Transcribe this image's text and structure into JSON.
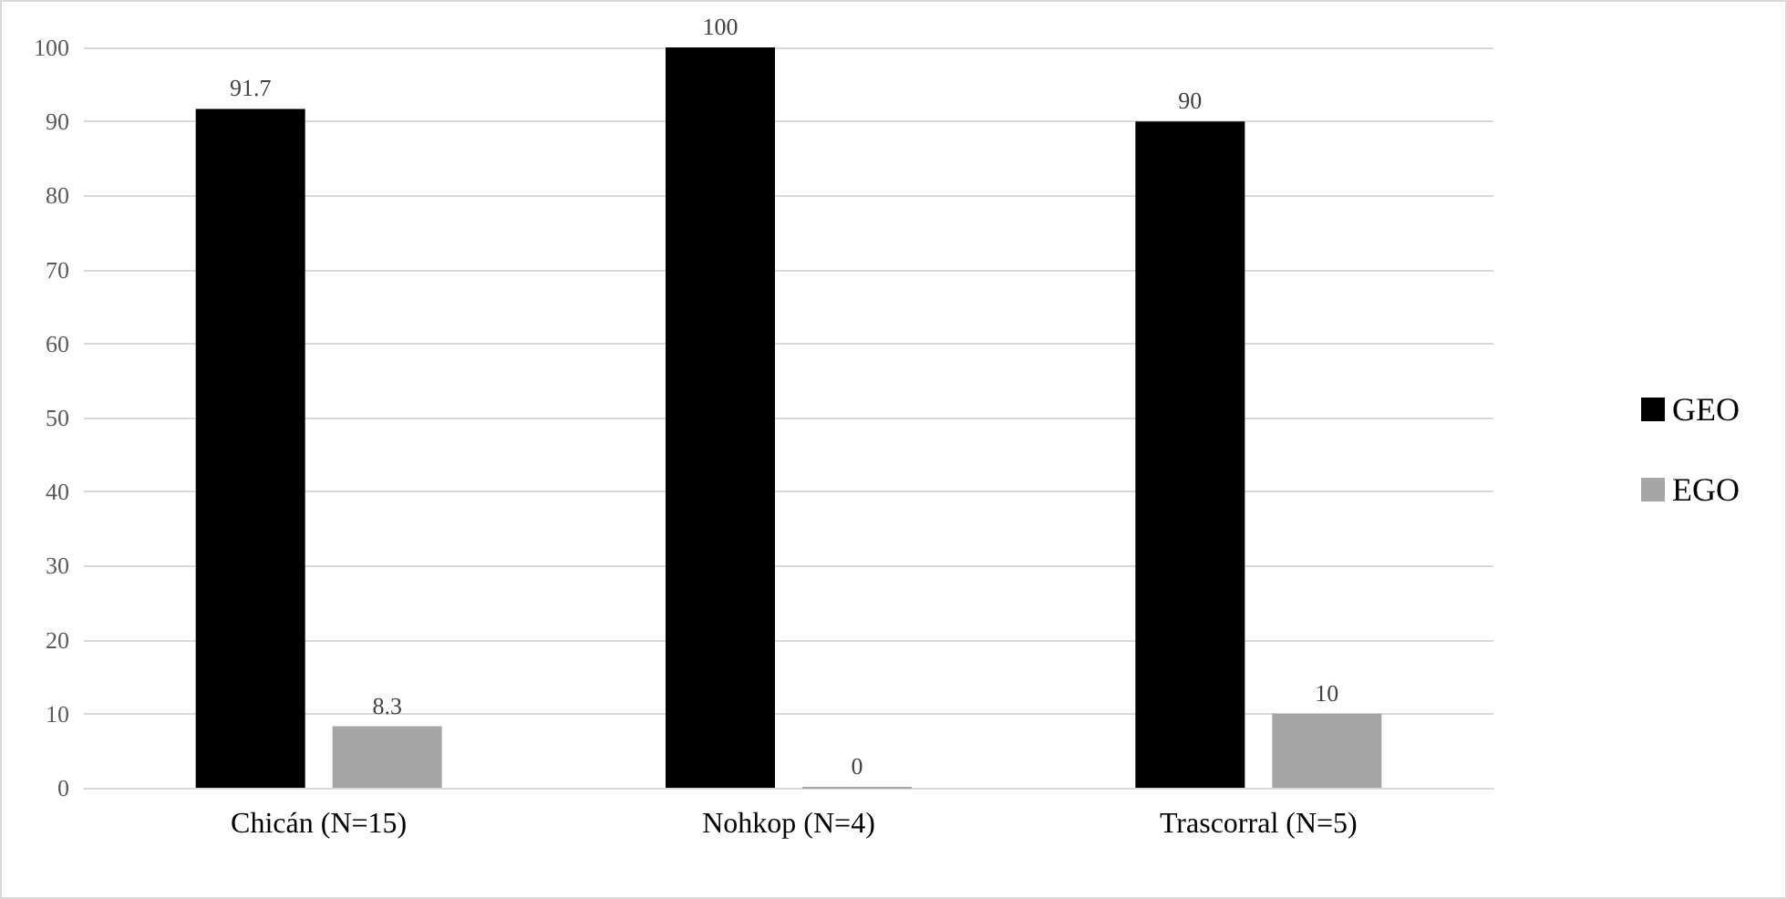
{
  "chart_data": {
    "type": "bar",
    "categories": [
      "Chicán (N=15)",
      "Nohkop (N=4)",
      "Trascorral (N=5)"
    ],
    "series": [
      {
        "name": "GEO",
        "color": "#000000",
        "values": [
          91.7,
          100,
          90
        ]
      },
      {
        "name": "EGO",
        "color": "#a6a6a6",
        "values": [
          8.3,
          0,
          10
        ]
      }
    ],
    "ylim": [
      0,
      100
    ],
    "yticks": [
      0,
      10,
      20,
      30,
      40,
      50,
      60,
      70,
      80,
      90,
      100
    ],
    "grid": "y",
    "legend": "right",
    "data_labels": true
  }
}
